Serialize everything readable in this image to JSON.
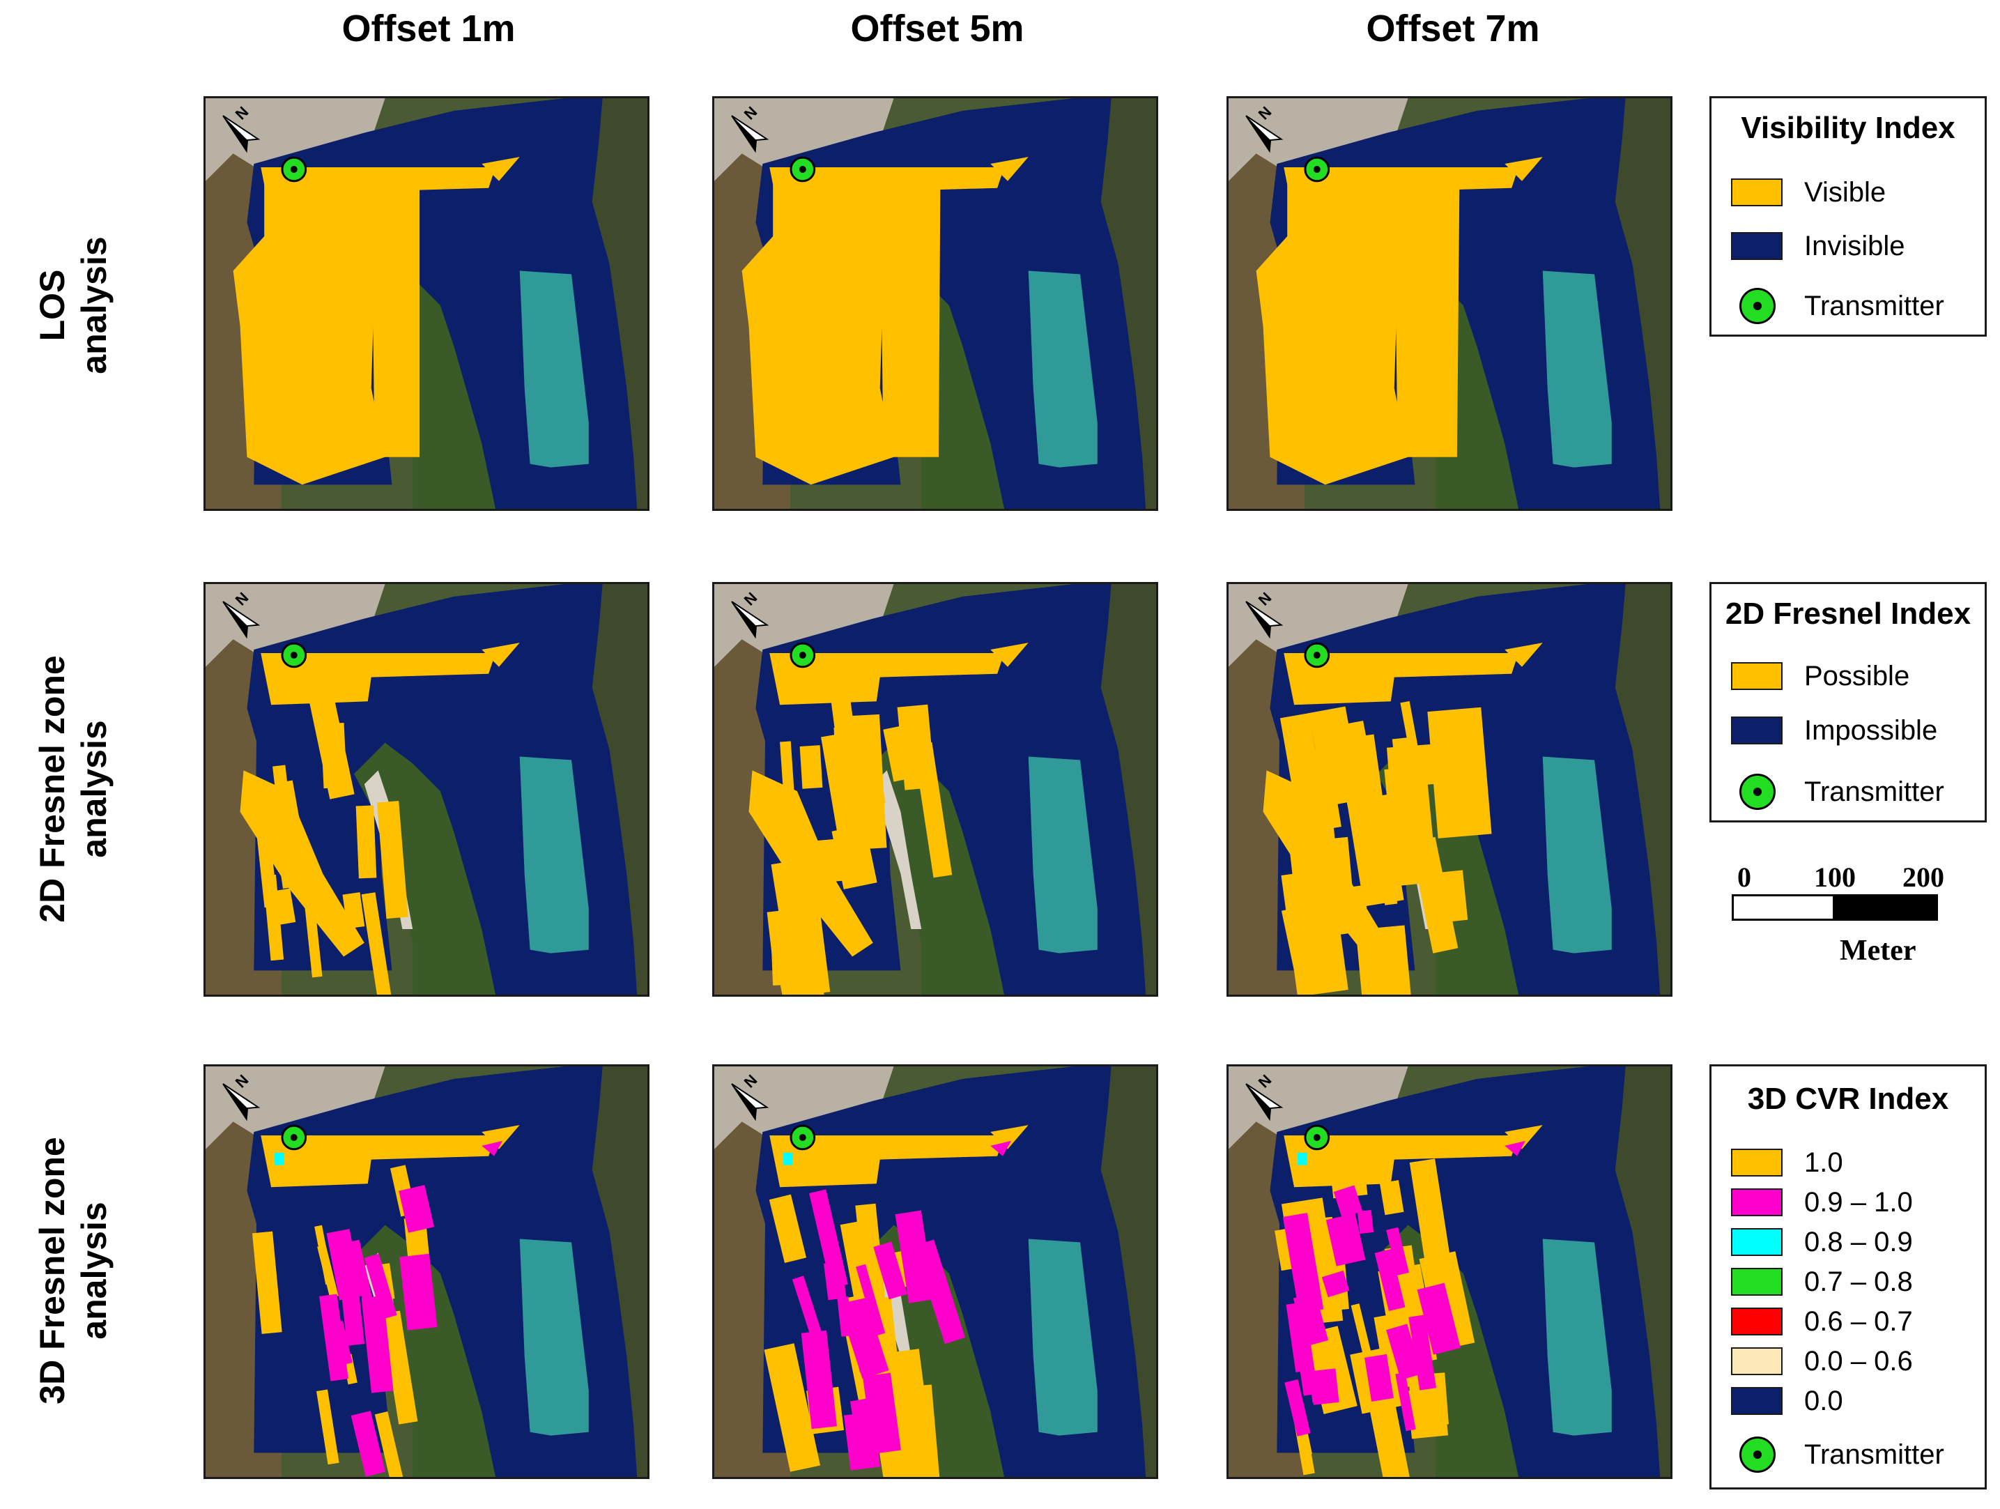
{
  "columns": [
    "Offset 1m",
    "Offset 5m",
    "Offset 7m"
  ],
  "rows": [
    {
      "lines": [
        "LOS",
        "analysis"
      ]
    },
    {
      "lines": [
        "2D Fresnel zone",
        "analysis"
      ]
    },
    {
      "lines": [
        "3D Fresnel zone",
        "analysis"
      ]
    }
  ],
  "legends": {
    "visibility": {
      "title": "Visibility Index",
      "items": [
        {
          "label": "Visible",
          "color": "#ffc000"
        },
        {
          "label": "Invisible",
          "color": "#0b1f6b"
        },
        {
          "label": "Transmitter",
          "icon": "transmitter-icon"
        }
      ]
    },
    "fresnel2d": {
      "title": "2D Fresnel Index",
      "items": [
        {
          "label": "Possible",
          "color": "#ffc000"
        },
        {
          "label": "Impossible",
          "color": "#0b1f6b"
        },
        {
          "label": "Transmitter",
          "icon": "transmitter-icon"
        }
      ]
    },
    "cvr3d": {
      "title": "3D CVR Index",
      "items": [
        {
          "label": "1.0",
          "color": "#ffc000"
        },
        {
          "label": "0.9 – 1.0",
          "color": "#ff00cc"
        },
        {
          "label": "0.8 – 0.9",
          "color": "#00ffff"
        },
        {
          "label": "0.7 – 0.8",
          "color": "#22dd22"
        },
        {
          "label": "0.6 – 0.7",
          "color": "#ff0000"
        },
        {
          "label": "0.0 – 0.6",
          "color": "#fde9b8"
        },
        {
          "label": "0.0",
          "color": "#0b1f6b"
        },
        {
          "label": "Transmitter",
          "icon": "transmitter-icon"
        }
      ]
    }
  },
  "scale": {
    "ticks": [
      "0",
      "100",
      "200"
    ],
    "unit": "Meter"
  },
  "north_label": "N",
  "colors": {
    "visible": "#ffc000",
    "invisible": "#0b1f6b",
    "cvr_high": "#ff00cc",
    "cvr_cyan": "#00ffff",
    "transmitter": "#22dd22",
    "lake": "#2f9a98"
  }
}
